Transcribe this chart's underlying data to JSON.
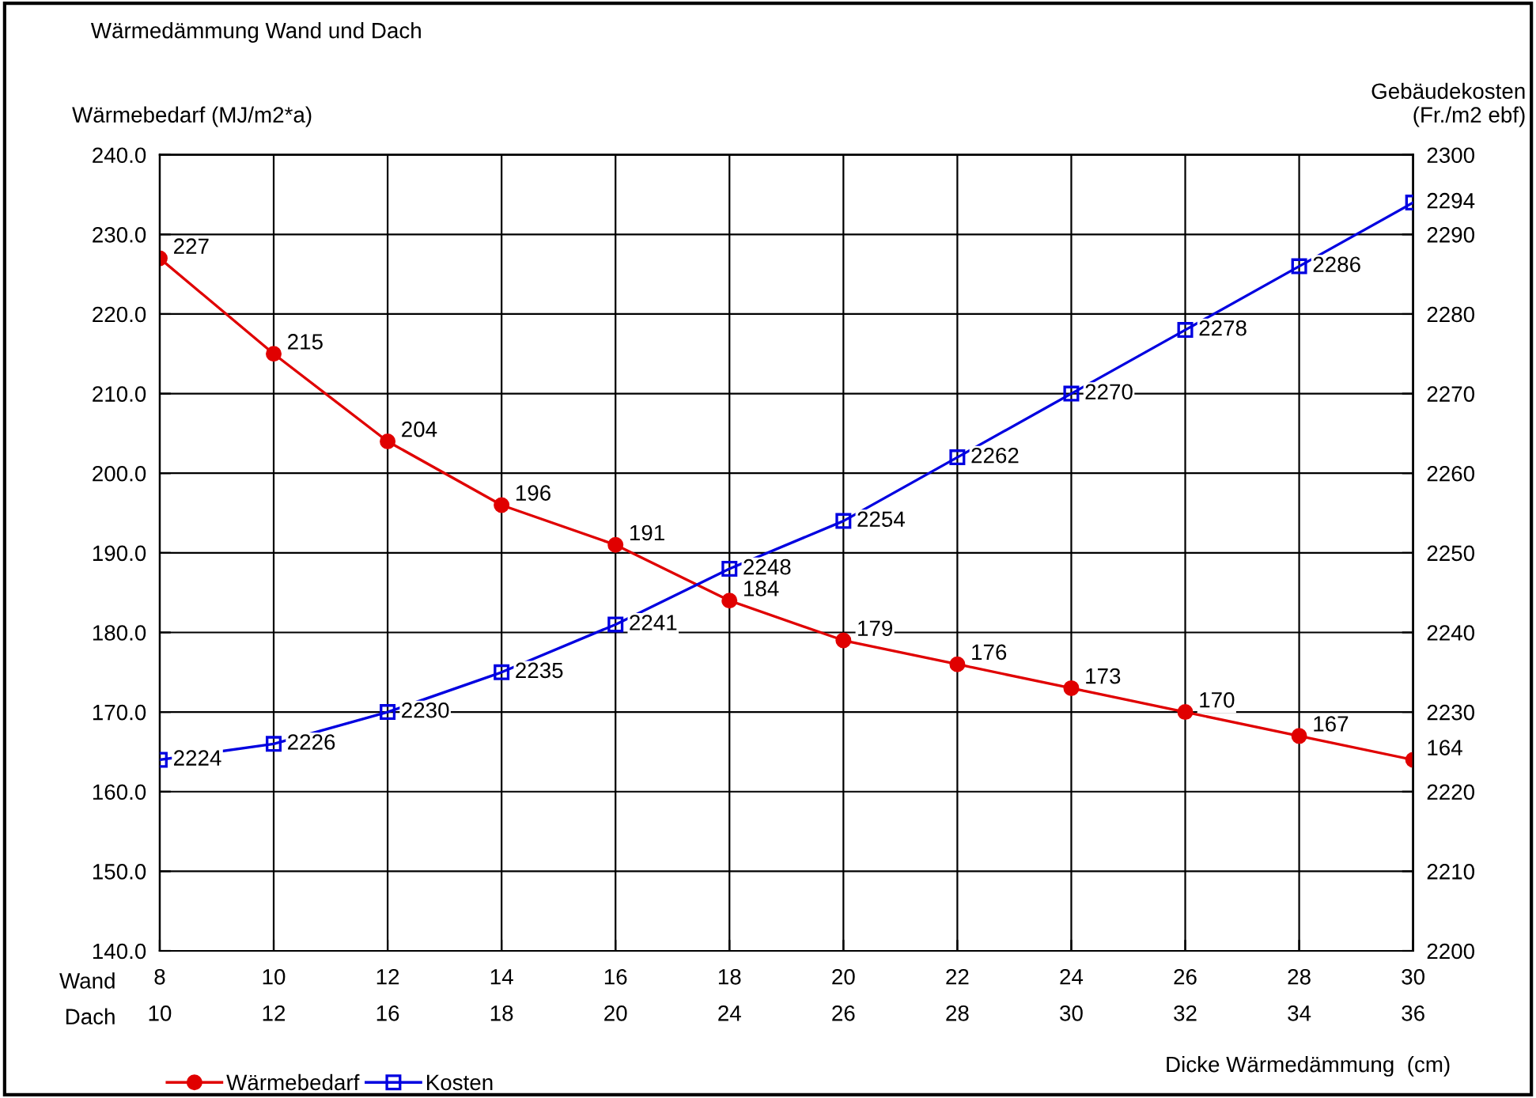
{
  "chart_data": {
    "type": "line",
    "title": "Wärmedämmung Wand und Dach",
    "ylabel": "Wärmebedarf (MJ/m2*a)",
    "y2label": "Gebäudekosten\n(Fr./m2 ebf)",
    "xlabel": "Dicke Wärmedämmung  (cm)",
    "categories": [
      "8\n10",
      "10\n12",
      "12\n16",
      "14\n18",
      "16\n20",
      "18\n24",
      "20\n26",
      "22\n28",
      "24\n30",
      "26\n32",
      "28\n34",
      "30\n36"
    ],
    "annotations": [
      "Wand",
      "Dach"
    ],
    "series": [
      {
        "name": "Wärmebedarf",
        "color": "#e00000",
        "marker": "circle",
        "values": [
          227,
          215,
          204,
          196,
          191,
          184,
          179,
          176,
          173,
          170,
          167,
          164
        ]
      },
      {
        "name": "Kosten",
        "color": "#0000e0",
        "marker": "square",
        "axis": "y2",
        "values": [
          2224,
          2226,
          2230,
          2235,
          2241,
          2248,
          2254,
          2262,
          2270,
          2278,
          2286,
          2294
        ]
      }
    ],
    "ylim": [
      140,
      240
    ],
    "yticks": [
      {
        "value": 140,
        "label": "140.0"
      },
      {
        "value": 150,
        "label": "150.0"
      },
      {
        "value": 160,
        "label": "160.0"
      },
      {
        "value": 170,
        "label": "170.0"
      },
      {
        "value": 180,
        "label": "180.0"
      },
      {
        "value": 190,
        "label": "190.0"
      },
      {
        "value": 200,
        "label": "200.0"
      },
      {
        "value": 210,
        "label": "210.0"
      },
      {
        "value": 220,
        "label": "220.0"
      },
      {
        "value": 230,
        "label": "230.0"
      },
      {
        "value": 240,
        "label": "240.0"
      }
    ],
    "y2lim": [
      2200,
      2300
    ],
    "y2ticks": [
      2200,
      2210,
      2220,
      2230,
      2240,
      2250,
      2260,
      2270,
      2280,
      2290,
      2300
    ],
    "grid": true,
    "legend": "bottom left",
    "data_labels": true
  }
}
